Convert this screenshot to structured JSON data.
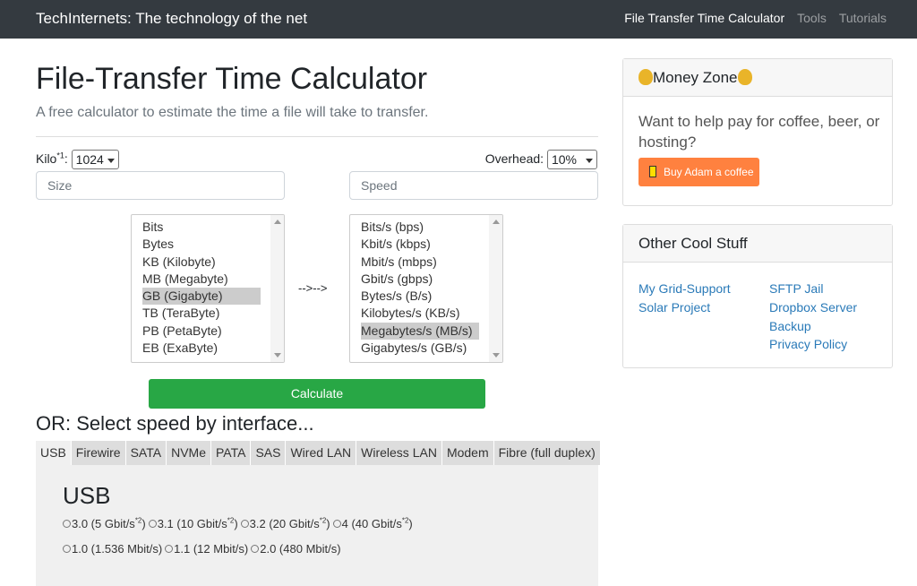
{
  "nav": {
    "brand": "TechInternets: The technology of the net",
    "links": [
      "File Transfer Time Calculator",
      "Tools",
      "Tutorials"
    ]
  },
  "main": {
    "title": "File-Transfer Time Calculator",
    "subtitle": "A free calculator to estimate the time a file will take to transfer.",
    "kilo_label": "Kilo",
    "kilo_sup": "*1",
    "kilo_colon": ":",
    "kilo_value": "1024",
    "overhead_label": "Overhead:",
    "overhead_value": "10%",
    "size_placeholder": "Size",
    "speed_placeholder": "Speed",
    "size_units": [
      "Bits",
      "Bytes",
      "KB (Kilobyte)",
      "MB (Megabyte)",
      "GB (Gigabyte)",
      "TB (TeraByte)",
      "PB (PetaByte)",
      "EB (ExaByte)"
    ],
    "size_selected": "GB (Gigabyte)",
    "arrow": "-->-->",
    "speed_units": [
      "Bits/s (bps)",
      "Kbit/s (kbps)",
      "Mbit/s (mbps)",
      "Gbit/s (gbps)",
      "Bytes/s (B/s)",
      "Kilobytes/s (KB/s)",
      "Megabytes/s (MB/s)",
      "Gigabytes/s (GB/s)"
    ],
    "speed_selected": "Megabytes/s (MB/s)",
    "calculate_label": "Calculate",
    "or_heading": "OR: Select speed by interface...",
    "tabs": [
      "USB",
      "Firewire",
      "SATA",
      "NVMe",
      "PATA",
      "SAS",
      "Wired LAN",
      "Wireless LAN",
      "Modem",
      "Fibre (full duplex)"
    ],
    "active_tab": "USB",
    "panel_title": "USB",
    "radios_row1": [
      {
        "t": "3.0 (5 Gbit/s",
        "s": "*2",
        "e": ")"
      },
      {
        "t": "3.1 (10 Gbit/s",
        "s": "*2",
        "e": ")"
      },
      {
        "t": "3.2 (20 Gbit/s",
        "s": "*2",
        "e": ")"
      },
      {
        "t": "4 (40 Gbit/s",
        "s": "*2",
        "e": ")"
      }
    ],
    "radios_row2": [
      {
        "t": "1.0 (1.536 Mbit/s)"
      },
      {
        "t": "1.1 (12 Mbit/s)"
      },
      {
        "t": "2.0 (480 Mbit/s)"
      }
    ]
  },
  "sidebar": {
    "money_title": "Money Zone",
    "money_icon": "money-bag",
    "money_text": "Want to help pay for coffee, beer, or hosting?",
    "coffee_label": "Buy Adam a coffee",
    "coffee_color": "#ff813f",
    "other_title": "Other Cool Stuff",
    "links_col1": [
      "My Grid-Support",
      "Solar Project"
    ],
    "links_col2": [
      "SFTP Jail",
      "Dropbox Server",
      "Backup",
      "Privacy Policy"
    ]
  },
  "colors": {
    "navbar": "#343a40",
    "calculate": "#28a745",
    "link": "#2a7ab8"
  }
}
